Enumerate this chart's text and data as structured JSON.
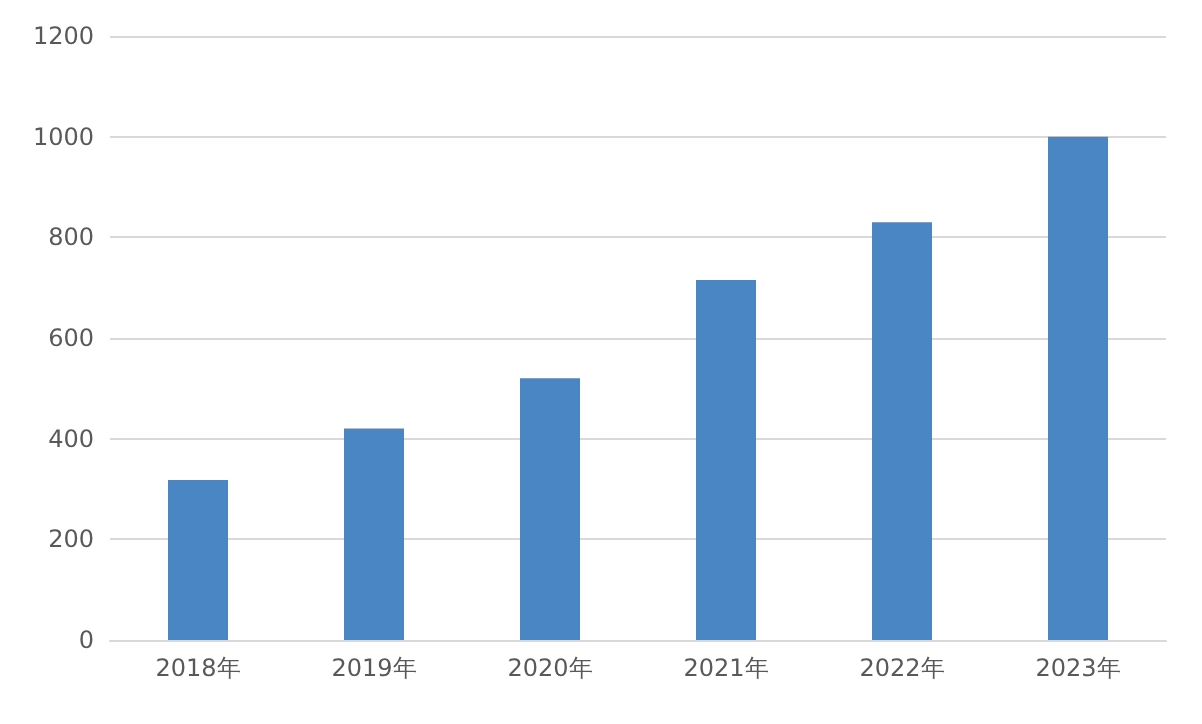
{
  "chart_data": {
    "type": "bar",
    "categories": [
      "2018年",
      "2019年",
      "2020年",
      "2021年",
      "2022年",
      "2023年"
    ],
    "values": [
      318,
      420,
      520,
      715,
      830,
      1000
    ],
    "color": "#4a86c4",
    "ylim": [
      0,
      1200
    ],
    "yticks": [
      0,
      200,
      400,
      600,
      800,
      1000,
      1200
    ],
    "grid": "y"
  }
}
